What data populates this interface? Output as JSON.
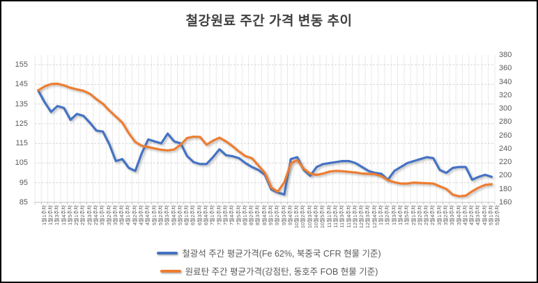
{
  "chart_data": {
    "type": "line",
    "title": "철강원료 주간 가격 변동 추이",
    "x_labels": [
      "1월1주차",
      "1월2주차",
      "1월3주차",
      "1월4주차",
      "1월5주차",
      "2월1주차",
      "2월2주차",
      "2월3주차",
      "2월4주차",
      "3월1주차",
      "3월2주차",
      "3월3주차",
      "3월4주차",
      "4월1주차",
      "4월2주차",
      "4월3주차",
      "4월4주차",
      "5월1주차",
      "5월2주차",
      "5월3주차",
      "5월4주차",
      "5월5주차",
      "6월1주차",
      "6월2주차",
      "6월3주차",
      "6월4주차",
      "7월1주차",
      "7월2주차",
      "7월3주차",
      "7월4주차",
      "7월5주차",
      "8월1주차",
      "8월2주차",
      "8월3주차",
      "8월4주차",
      "9월1주차",
      "9월2주차",
      "9월3주차",
      "9월4주차",
      "10월1주차",
      "10월2주차",
      "10월3주차",
      "10월4주차",
      "10월5주차",
      "11월1주차",
      "11월2주차",
      "11월3주차",
      "11월4주차",
      "12월1주차",
      "12월2주차",
      "12월3주차",
      "12월4주차",
      "1월1주차",
      "1월2주차",
      "1월3주차",
      "1월4주차",
      "1월5주차",
      "2월1주차",
      "2월2주차",
      "2월3주차",
      "2월4주차",
      "3월1주차",
      "3월2주차",
      "3월3주차",
      "3월4주차",
      "4월1주차",
      "4월2주차",
      "4월3주차",
      "4월4주차",
      "5월1주차",
      "5월2주차"
    ],
    "series": [
      {
        "name": "철광석 주간 평균가격(Fe 62%, 북중국 CFR 현물 기준)",
        "axis": "left",
        "color": "#4472C4",
        "values": [
          142,
          136,
          131,
          134,
          133,
          127,
          130,
          129,
          125.5,
          121.5,
          121,
          114.5,
          106,
          107,
          102.5,
          101,
          110,
          117,
          116,
          115,
          120,
          116,
          115,
          108.5,
          105.5,
          104.5,
          104.5,
          108,
          112,
          109,
          108.5,
          107.5,
          105,
          103,
          101.5,
          99,
          91.5,
          90,
          89,
          107,
          108,
          101.5,
          98.5,
          103,
          104.5,
          105,
          105.5,
          106,
          106,
          105,
          103,
          101,
          100,
          99.5,
          96.5,
          101,
          103,
          105,
          106,
          107,
          108,
          107.5,
          101.5,
          100,
          102.5,
          103,
          103,
          96.5,
          98,
          99,
          98
        ]
      },
      {
        "name": "원료탄 주간 평균가격(강점탄, 동호주 FOB 현물 기준)",
        "axis": "right",
        "color": "#ED7D31",
        "values": [
          327,
          333,
          336.5,
          337,
          334.5,
          331,
          328.5,
          326.5,
          322,
          314,
          307,
          297,
          288,
          279,
          263,
          250,
          244.5,
          242.5,
          240.5,
          238.5,
          237.5,
          239,
          246,
          256,
          258,
          257.5,
          246,
          252,
          256.5,
          251,
          244,
          236,
          229,
          226,
          215,
          204,
          182,
          176,
          190,
          218,
          223,
          210,
          203,
          201,
          203,
          206,
          207,
          206.5,
          205.5,
          204.5,
          203,
          202.5,
          202,
          199,
          193,
          190,
          188,
          188,
          189.5,
          189,
          188.5,
          188,
          184,
          180,
          171.5,
          169,
          170,
          176.5,
          182,
          186,
          187
        ]
      }
    ],
    "left_axis": {
      "min": 85,
      "max": 160,
      "tick_labels": [
        85,
        95,
        105,
        115,
        125,
        135,
        145,
        155
      ]
    },
    "right_axis": {
      "min": 160,
      "max": 380,
      "tick_labels": [
        160,
        180,
        200,
        220,
        240,
        260,
        280,
        300,
        320,
        340,
        360,
        380
      ]
    },
    "grid": {
      "vertical_per_category": true,
      "horizontal_dashed": true
    },
    "legend_position": "bottom-center",
    "colors": {
      "grid_vertical": "#e9e9e9",
      "grid_horizontal": "#d6d6d6",
      "axis_line": "#bfbfbf",
      "tick_mark": "#bfbfbf",
      "text": "#595959",
      "title": "#3f3f3f"
    }
  }
}
